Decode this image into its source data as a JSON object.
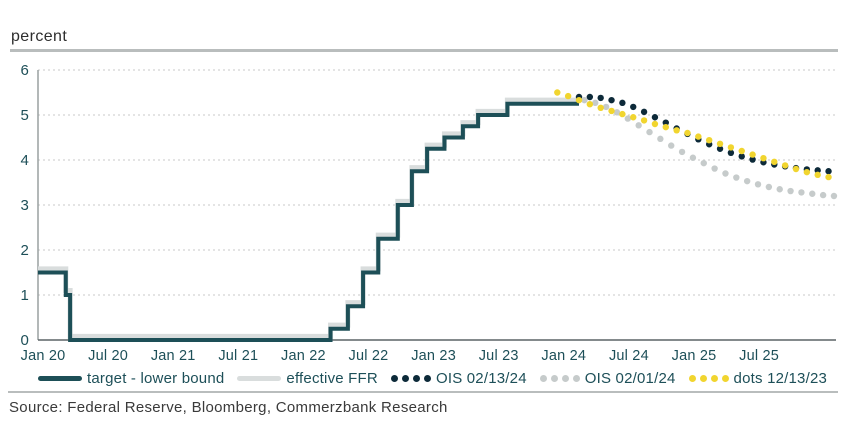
{
  "page": {
    "unit_label": "percent",
    "source": "Source: Federal Reserve, Bloomberg, Commerzbank Research"
  },
  "legend": {
    "items": [
      {
        "label": "target - lower bound",
        "swatch": "line",
        "color": "#1d4f57"
      },
      {
        "label": "effective FFR",
        "swatch": "line",
        "color": "#d9dddd"
      },
      {
        "label": "OIS 02/13/24",
        "swatch": "dots",
        "color": "#0d2a39"
      },
      {
        "label": "OIS 02/01/24",
        "swatch": "dots",
        "color": "#c6cbcb"
      },
      {
        "label": "dots 12/13/23",
        "swatch": "dots",
        "color": "#f1d52f"
      }
    ]
  },
  "colors": {
    "target_line": "#1d4f57",
    "effective_ffr_line": "#d9dddd",
    "ois_0213_dots": "#0d2a39",
    "ois_0201_dots": "#c6cbcb",
    "fed_dots": "#f1d52f",
    "tick_label": "#1d4f58",
    "grid": "#c9c9c9",
    "y_axis": "#9aa0a0",
    "x_axis": "#5b6467",
    "rule": "#b9bdbd"
  },
  "chart_data": {
    "type": "line",
    "title": "",
    "unit_label": "percent",
    "ylim": [
      0,
      6
    ],
    "yticks": [
      0,
      1,
      2,
      3,
      4,
      5,
      6
    ],
    "xticks": [
      "Jan 20",
      "Jul 20",
      "Jan 21",
      "Jul 21",
      "Jan 22",
      "Jul 22",
      "Jan 23",
      "Jul 23",
      "Jan 24",
      "Jul 24",
      "Jan 25",
      "Jul 25"
    ],
    "xtick_months": [
      0,
      6,
      12,
      18,
      24,
      30,
      36,
      42,
      48,
      54,
      60,
      66
    ],
    "x_month_zero": "Jan 2020",
    "grid": "horizontal dotted",
    "legend_position": "bottom",
    "series": [
      {
        "id": "target_lower_bound",
        "name": "target - lower bound",
        "style": "step-line",
        "color": "#1d4f57",
        "line_width": 4,
        "steps": [
          [
            -0.45,
            1.5
          ],
          [
            2.1,
            1.0
          ],
          [
            2.5,
            0.0
          ],
          [
            26.5,
            0.25
          ],
          [
            28.1,
            0.75
          ],
          [
            29.5,
            1.5
          ],
          [
            30.9,
            2.25
          ],
          [
            32.7,
            3.0
          ],
          [
            34.0,
            3.75
          ],
          [
            35.4,
            4.25
          ],
          [
            37.0,
            4.5
          ],
          [
            38.7,
            4.75
          ],
          [
            40.1,
            5.0
          ],
          [
            42.8,
            5.25
          ]
        ],
        "end_month": 49.4
      },
      {
        "id": "effective_ffr",
        "name": "effective FFR",
        "style": "step-line",
        "color": "#d9dddd",
        "line_width": 5,
        "steps": [
          [
            -0.45,
            1.58
          ],
          [
            2.1,
            1.1
          ],
          [
            2.5,
            0.08
          ],
          [
            26.5,
            0.33
          ],
          [
            28.1,
            0.83
          ],
          [
            29.5,
            1.58
          ],
          [
            30.9,
            2.33
          ],
          [
            32.7,
            3.08
          ],
          [
            34.0,
            3.83
          ],
          [
            35.4,
            4.33
          ],
          [
            37.0,
            4.58
          ],
          [
            38.7,
            4.83
          ],
          [
            40.1,
            5.08
          ],
          [
            42.8,
            5.33
          ]
        ],
        "end_month": 49.4
      },
      {
        "id": "ois_02_13_24",
        "name": "OIS 02/13/24",
        "style": "dots",
        "color": "#0d2a39",
        "start_month": 49.4,
        "interval": 1,
        "values": [
          5.4,
          5.4,
          5.38,
          5.33,
          5.27,
          5.18,
          5.07,
          4.95,
          4.83,
          4.7,
          4.58,
          4.46,
          4.35,
          4.25,
          4.16,
          4.08,
          4.01,
          3.95,
          3.9,
          3.86,
          3.82,
          3.79,
          3.77,
          3.75
        ]
      },
      {
        "id": "ois_02_01_24",
        "name": "OIS 02/01/24",
        "style": "dots",
        "color": "#c6cbcb",
        "start_month": 49.9,
        "interval": 1,
        "values": [
          5.33,
          5.27,
          5.18,
          5.06,
          4.92,
          4.77,
          4.62,
          4.47,
          4.32,
          4.18,
          4.05,
          3.93,
          3.81,
          3.7,
          3.61,
          3.53,
          3.46,
          3.4,
          3.35,
          3.31,
          3.28,
          3.25,
          3.22,
          3.2
        ]
      },
      {
        "id": "dots_12_13_23",
        "name": "dots 12/13/23",
        "style": "dots",
        "color": "#f1d52f",
        "start_month": 47.4,
        "interval": 1,
        "values": [
          5.5,
          5.42,
          5.33,
          5.24,
          5.16,
          5.09,
          5.02,
          4.95,
          4.88,
          4.8,
          4.73,
          4.66,
          4.6,
          4.52,
          4.44,
          4.36,
          4.28,
          4.2,
          4.12,
          4.04,
          3.96,
          3.88,
          3.8,
          3.73,
          3.67,
          3.62
        ]
      }
    ]
  }
}
